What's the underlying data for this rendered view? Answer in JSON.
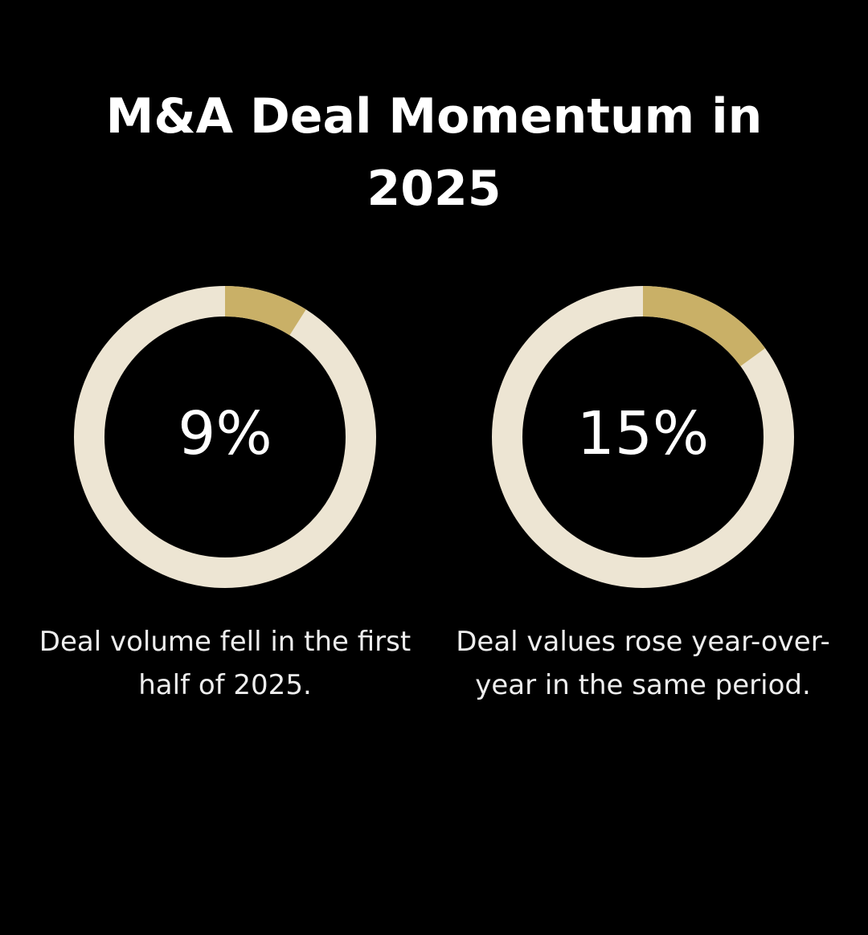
{
  "title": "M&A Deal Momentum in 2025",
  "chart_data": [
    {
      "type": "donut",
      "values": [
        9
      ],
      "value_labels": [
        "9%"
      ],
      "color": "#c9b067",
      "track_color": "#ede5d3",
      "caption": "Deal volume fell in the first half of 2025."
    },
    {
      "type": "donut",
      "values": [
        15
      ],
      "value_labels": [
        "15%"
      ],
      "color": "#c9b067",
      "track_color": "#ede5d3",
      "caption": "Deal values rose year-over-year in the same period."
    }
  ]
}
